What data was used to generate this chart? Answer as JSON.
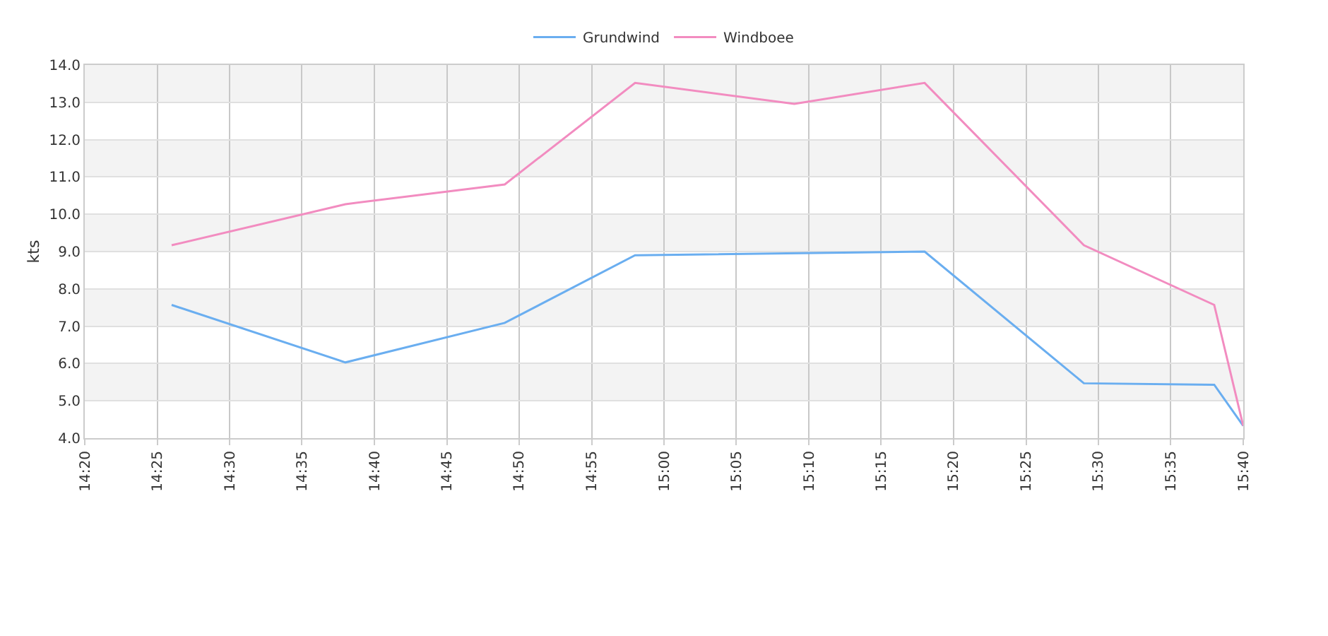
{
  "chart_data": {
    "type": "line",
    "ylabel": "kts",
    "legend": "top",
    "grid": true,
    "marker": "none",
    "line_style": "solid",
    "xlim": [
      14.3333,
      15.6667
    ],
    "xticks": [
      {
        "value": 14.3333,
        "label": "14:20"
      },
      {
        "value": 14.4167,
        "label": "14:25"
      },
      {
        "value": 14.5,
        "label": "14:30"
      },
      {
        "value": 14.5833,
        "label": "14:35"
      },
      {
        "value": 14.6667,
        "label": "14:40"
      },
      {
        "value": 14.75,
        "label": "14:45"
      },
      {
        "value": 14.8333,
        "label": "14:50"
      },
      {
        "value": 14.9167,
        "label": "14:55"
      },
      {
        "value": 15.0,
        "label": "15:00"
      },
      {
        "value": 15.0833,
        "label": "15:05"
      },
      {
        "value": 15.1667,
        "label": "15:10"
      },
      {
        "value": 15.25,
        "label": "15:15"
      },
      {
        "value": 15.3333,
        "label": "15:20"
      },
      {
        "value": 15.4167,
        "label": "15:25"
      },
      {
        "value": 15.5,
        "label": "15:30"
      },
      {
        "value": 15.5833,
        "label": "15:35"
      },
      {
        "value": 15.6667,
        "label": "15:40"
      }
    ],
    "ylim": [
      4,
      14
    ],
    "yticks": [
      {
        "value": 4,
        "label": "4.0"
      },
      {
        "value": 5,
        "label": "5.0"
      },
      {
        "value": 6,
        "label": "6.0"
      },
      {
        "value": 7,
        "label": "7.0"
      },
      {
        "value": 8,
        "label": "8.0"
      },
      {
        "value": 9,
        "label": "9.0"
      },
      {
        "value": 10,
        "label": "10.0"
      },
      {
        "value": 11,
        "label": "11.0"
      },
      {
        "value": 12,
        "label": "12.0"
      },
      {
        "value": 13,
        "label": "13.0"
      },
      {
        "value": 14,
        "label": "14.0"
      }
    ],
    "bands": [
      {
        "axis": "y",
        "from": 5,
        "to": 6,
        "color": "#f3f3f3"
      },
      {
        "axis": "y",
        "from": 7,
        "to": 8,
        "color": "#f3f3f3"
      },
      {
        "axis": "y",
        "from": 9,
        "to": 10,
        "color": "#f3f3f3"
      },
      {
        "axis": "y",
        "from": 11,
        "to": 12,
        "color": "#f3f3f3"
      },
      {
        "axis": "y",
        "from": 13,
        "to": 14,
        "color": "#f3f3f3"
      }
    ],
    "series": [
      {
        "name": "Grundwind",
        "color": "#6aaef0",
        "x": [
          14.4333,
          14.6333,
          14.8167,
          14.9667,
          15.3,
          15.4833,
          15.6333,
          15.6667
        ],
        "values": [
          7.57,
          6.03,
          7.09,
          8.9,
          9.0,
          5.47,
          5.43,
          4.33
        ]
      },
      {
        "name": "Windboee",
        "color": "#f28cc0",
        "x": [
          14.4333,
          14.6333,
          14.8167,
          14.9667,
          15.15,
          15.3,
          15.4833,
          15.6333,
          15.6667
        ],
        "values": [
          9.17,
          10.27,
          10.8,
          13.52,
          12.96,
          13.52,
          9.17,
          7.57,
          4.33
        ]
      }
    ]
  }
}
